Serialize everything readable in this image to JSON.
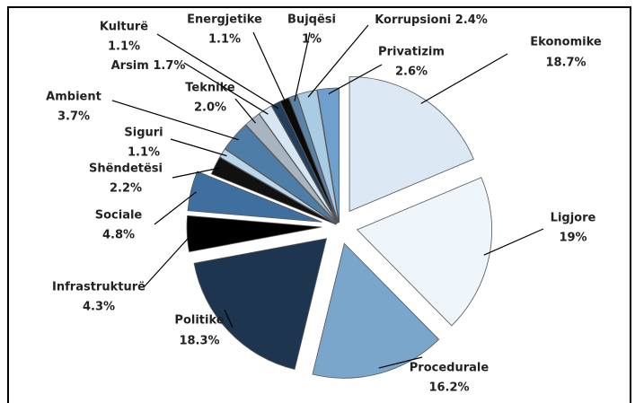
{
  "chart_data": {
    "type": "pie",
    "categories": [
      "Ekonomike",
      "Ligjore",
      "Procedurale",
      "Politike",
      "Infrastrukturë",
      "Sociale",
      "Shëndetësi",
      "Siguri",
      "Ambient",
      "Teknike",
      "Arsim",
      "Kulturë",
      "Energjetike",
      "Bujqësi",
      "Korrupsioni",
      "Privatizim"
    ],
    "values": [
      18.7,
      19,
      16.2,
      18.3,
      4.3,
      4.8,
      2.2,
      1.1,
      3.7,
      2.0,
      1.7,
      1.1,
      1.1,
      1,
      2.4,
      2.6
    ],
    "value_labels": [
      "18.7%",
      "19%",
      "16.2%",
      "18.3%",
      "4.3%",
      "4.8%",
      "2.2%",
      "1.1%",
      "3.7%",
      "2.0%",
      "1.7%",
      "1.1%",
      "1.1%",
      "1%",
      "2.4%",
      "2.6%"
    ],
    "colors": [
      "#dce9f5",
      "#eef5fb",
      "#7aa6cc",
      "#1e3550",
      "#000000",
      "#3f6f9f",
      "#111111",
      "#b9d6ea",
      "#4e7ea8",
      "#a8b4c0",
      "#d6e6f2",
      "#243f5e",
      "#0a0a0a",
      "#5b83a8",
      "#a9cbe3",
      "#6e9fcd"
    ]
  }
}
